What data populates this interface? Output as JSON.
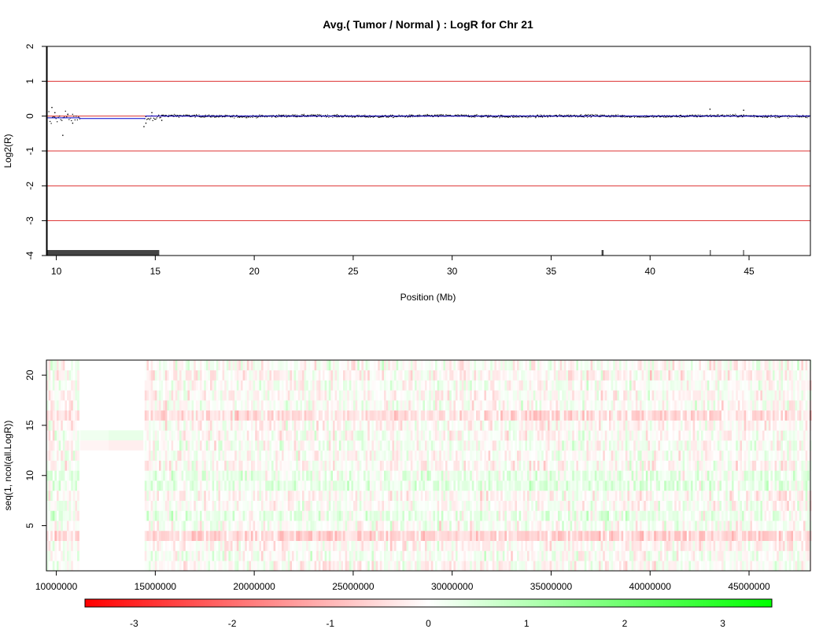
{
  "chart_data": [
    {
      "type": "scatter",
      "title": "Avg.( Tumor / Normal ) : LogR for Chr 21",
      "xlabel": "Position (Mb)",
      "ylabel": "Log2(R)",
      "xlim": [
        9.5,
        48.1
      ],
      "ylim": [
        -4,
        2
      ],
      "x_ticks": [
        10,
        15,
        20,
        25,
        30,
        35,
        40,
        45
      ],
      "y_ticks": [
        2,
        1,
        0,
        -1,
        -2,
        -3,
        -4
      ],
      "grid": "horizontal lines at integer y values",
      "colors": {
        "points": "#000000",
        "segment": "#0000cc",
        "gridlines": "#dd3333"
      },
      "segments": [
        {
          "x_start": 9.5,
          "x_end": 11.2,
          "value": -0.05
        },
        {
          "x_start": 11.2,
          "x_end": 14.5,
          "value": -0.07
        },
        {
          "x_start": 14.5,
          "x_end": 48.1,
          "value": 0.0
        }
      ],
      "coverage_bars": [
        {
          "x_start": 9.5,
          "x_end": 15.2
        },
        {
          "x_start": 37.55,
          "x_end": 37.65
        },
        {
          "x_start": 43.02,
          "x_end": 43.06
        },
        {
          "x_start": 44.7,
          "x_end": 44.73
        }
      ],
      "notable_points": [
        {
          "x": 9.75,
          "y": 0.25
        },
        {
          "x": 9.9,
          "y": 0.1
        },
        {
          "x": 10.3,
          "y": -0.55
        },
        {
          "x": 10.55,
          "y": 0.05
        },
        {
          "x": 10.8,
          "y": -0.2
        },
        {
          "x": 14.4,
          "y": -0.3
        },
        {
          "x": 14.5,
          "y": -0.2
        },
        {
          "x": 14.8,
          "y": 0.1
        },
        {
          "x": 15.3,
          "y": -0.12
        },
        {
          "x": 43.0,
          "y": 0.2
        },
        {
          "x": 44.7,
          "y": 0.17
        }
      ]
    },
    {
      "type": "heatmap",
      "xlabel": "",
      "ylabel": "seq(1, ncol(all.LogR))",
      "xlim": [
        9500000,
        48100000
      ],
      "ylim": [
        0.5,
        21.5
      ],
      "x_ticks": [
        10000000,
        15000000,
        20000000,
        25000000,
        30000000,
        35000000,
        40000000,
        45000000
      ],
      "x_tick_labels": [
        "10000000",
        "15000000",
        "20000000",
        "25000000",
        "30000000",
        "35000000",
        "40000000",
        "45000000"
      ],
      "y_ticks": [
        5,
        10,
        15,
        20
      ],
      "rows": 21,
      "gap_region": [
        11200000,
        14400000
      ],
      "row_bias": [
        -0.02,
        0.05,
        -0.1,
        -0.55,
        0.05,
        0.25,
        0.0,
        -0.05,
        0.3,
        0.25,
        -0.05,
        0.0,
        0.05,
        0.0,
        -0.05,
        -0.4,
        0.0,
        -0.05,
        0.05,
        -0.1,
        0.0
      ],
      "gap_rows_with_data": [
        {
          "row": 13,
          "value": -0.15
        },
        {
          "row": 14,
          "value": 0.2
        }
      ],
      "color_scale": {
        "min": -3.5,
        "max": 3.5,
        "low": "#ff0000",
        "mid": "#ffffff",
        "high": "#00ff00",
        "ticks": [
          -3,
          -2,
          -1,
          0,
          1,
          2,
          3
        ]
      }
    }
  ]
}
